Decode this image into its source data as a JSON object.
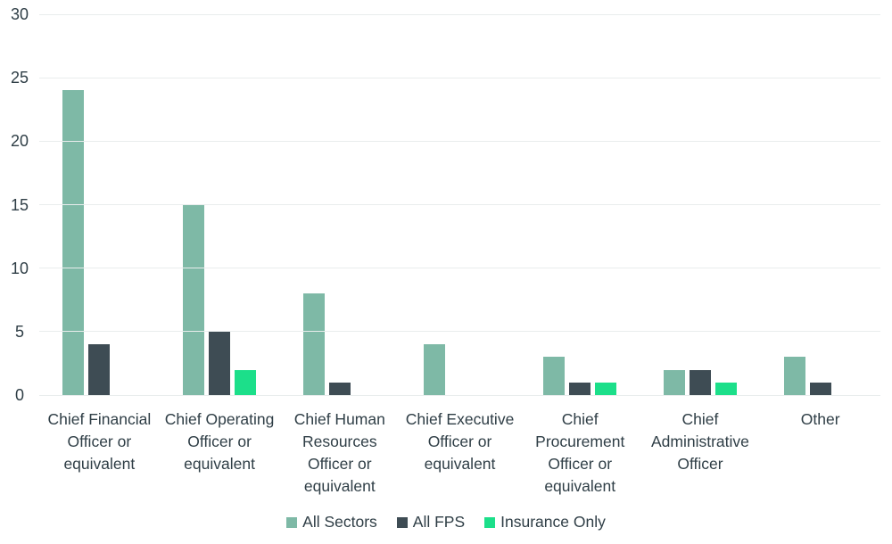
{
  "chart_data": {
    "type": "bar",
    "title": "",
    "xlabel": "",
    "ylabel": "",
    "categories": [
      "Chief Financial Officer or equivalent",
      "Chief Operating Officer or equivalent",
      "Chief Human Resources Officer or equivalent",
      "Chief Executive Officer or equivalent",
      "Chief Procurement Officer or equivalent",
      "Chief Administrative Officer",
      "Other"
    ],
    "category_lines": [
      [
        "Chief Financial",
        "Officer or",
        "equivalent"
      ],
      [
        "Chief Operating",
        "Officer or",
        "equivalent"
      ],
      [
        "Chief Human",
        "Resources",
        "Officer or",
        "equivalent"
      ],
      [
        "Chief Executive",
        "Officer or",
        "equivalent"
      ],
      [
        "Chief",
        "Procurement",
        "Officer or",
        "equivalent"
      ],
      [
        "Chief",
        "Administrative",
        "Officer"
      ],
      [
        "Other"
      ]
    ],
    "series": [
      {
        "name": "All Sectors",
        "color": "#7EB9A6",
        "values": [
          24,
          15,
          8,
          4,
          3,
          2,
          3
        ]
      },
      {
        "name": "All FPS",
        "color": "#3E4C54",
        "values": [
          4,
          5,
          1,
          0,
          1,
          2,
          1
        ]
      },
      {
        "name": "Insurance Only",
        "color": "#1CDF8A",
        "values": [
          0,
          2,
          0,
          0,
          1,
          1,
          0
        ]
      }
    ],
    "ylim": [
      0,
      30
    ],
    "yticks": [
      0,
      5,
      10,
      15,
      20,
      25,
      30
    ],
    "grid": true,
    "legend_position": "bottom"
  },
  "colors": {
    "background": "#ffffff",
    "gridline": "#e9eded",
    "text": "#2f3e46"
  }
}
